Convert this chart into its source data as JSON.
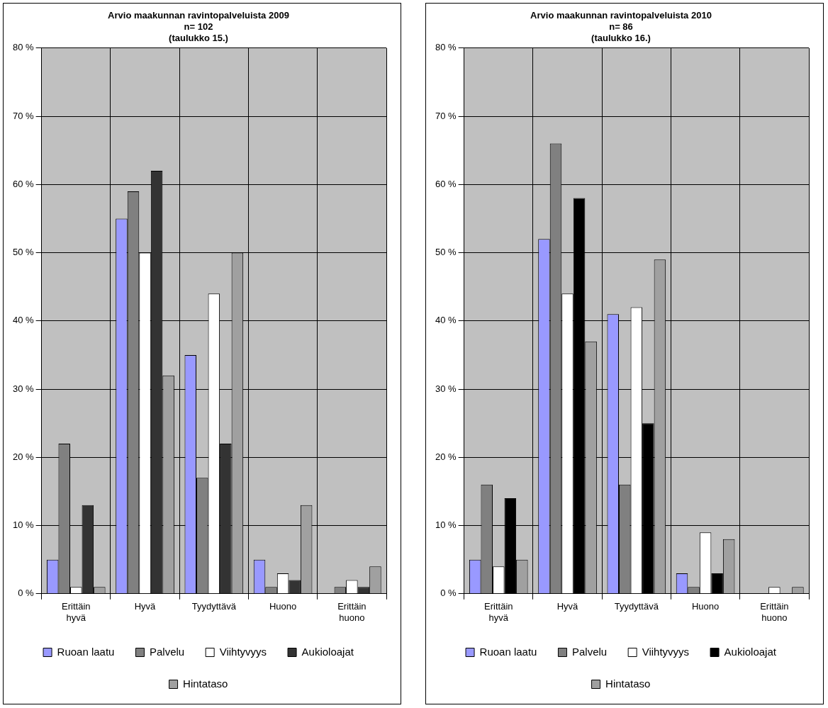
{
  "chart_data": [
    {
      "type": "bar",
      "title": "Arvio maakunnan ravintopalveluista 2009\nn= 102\n(taulukko 15.)",
      "categories": [
        "Erittäin hyvä",
        "Hyvä",
        "Tyydyttävä",
        "Huono",
        "Erittäin huono"
      ],
      "series": [
        {
          "name": "Ruoan laatu",
          "color": "#9999ff",
          "values": [
            5,
            55,
            35,
            5,
            0
          ]
        },
        {
          "name": "Palvelu",
          "color": "#808080",
          "values": [
            22,
            59,
            17,
            1,
            1
          ]
        },
        {
          "name": "Viihtyvyys",
          "color": "#ffffff",
          "values": [
            1,
            50,
            44,
            3,
            2
          ]
        },
        {
          "name": "Aukioloajat",
          "color": "#333333",
          "values": [
            13,
            62,
            22,
            2,
            1
          ]
        },
        {
          "name": "Hintataso",
          "color": "#a0a0a0",
          "values": [
            1,
            32,
            50,
            13,
            4
          ]
        }
      ],
      "ylim": [
        0,
        80
      ],
      "yticks": [
        {
          "value": 0,
          "label": "0 %"
        },
        {
          "value": 10,
          "label": "10 %"
        },
        {
          "value": 20,
          "label": "20 %"
        },
        {
          "value": 30,
          "label": "30 %"
        },
        {
          "value": 40,
          "label": "40 %"
        },
        {
          "value": 50,
          "label": "50 %"
        },
        {
          "value": 60,
          "label": "60 %"
        },
        {
          "value": 70,
          "label": "70 %"
        },
        {
          "value": 80,
          "label": "80 %"
        }
      ],
      "grid": true,
      "legend": "bottom"
    },
    {
      "type": "bar",
      "title": "Arvio maakunnan ravintopalveluista 2010\nn= 86\n(taulukko 16.)",
      "categories": [
        "Erittäin hyvä",
        "Hyvä",
        "Tyydyttävä",
        "Huono",
        "Erittäin huono"
      ],
      "series": [
        {
          "name": "Ruoan laatu",
          "color": "#9999ff",
          "values": [
            5,
            52,
            41,
            3,
            0
          ]
        },
        {
          "name": "Palvelu",
          "color": "#808080",
          "values": [
            16,
            66,
            16,
            1,
            0
          ]
        },
        {
          "name": "Viihtyvyys",
          "color": "#ffffff",
          "values": [
            4,
            44,
            42,
            9,
            1
          ]
        },
        {
          "name": "Aukioloajat",
          "color": "#000000",
          "values": [
            14,
            58,
            25,
            3,
            0
          ]
        },
        {
          "name": "Hintataso",
          "color": "#a0a0a0",
          "values": [
            5,
            37,
            49,
            8,
            1
          ]
        }
      ],
      "ylim": [
        0,
        80
      ],
      "yticks": [
        {
          "value": 0,
          "label": "0 %"
        },
        {
          "value": 10,
          "label": "10 %"
        },
        {
          "value": 20,
          "label": "20 %"
        },
        {
          "value": 30,
          "label": "30 %"
        },
        {
          "value": 40,
          "label": "40 %"
        },
        {
          "value": 50,
          "label": "50 %"
        },
        {
          "value": 60,
          "label": "60 %"
        },
        {
          "value": 70,
          "label": "70 %"
        },
        {
          "value": 80,
          "label": "80 %"
        }
      ],
      "grid": true,
      "legend": "bottom"
    }
  ]
}
